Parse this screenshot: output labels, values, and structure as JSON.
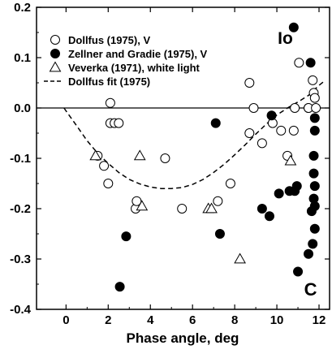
{
  "chart_data": {
    "type": "scatter",
    "title": "",
    "xlabel": "Phase angle, deg",
    "ylabel": "",
    "xlim": [
      -1.4,
      12.5
    ],
    "ylim": [
      -0.4,
      0.2
    ],
    "xticks": [
      0,
      2,
      4,
      6,
      8,
      10,
      12
    ],
    "yticks": [
      0.2,
      0.1,
      0.0,
      -0.1,
      -0.2,
      -0.3,
      -0.4
    ],
    "xtick_labels": [
      "0",
      "2",
      "4",
      "6",
      "8",
      "10",
      "12"
    ],
    "ytick_labels": [
      "0.2",
      "0.1",
      "0.0",
      "-0.1",
      "-0.2",
      "-0.3",
      "-0.4"
    ],
    "grid": false,
    "legend_position": "top-left",
    "zero_line": 0.0,
    "annotations": [
      {
        "text": "Io",
        "x": 10.4,
        "y": 0.14
      },
      {
        "text": "C",
        "x": 11.6,
        "y": -0.36
      }
    ],
    "series": [
      {
        "name": "Dollfus (1975), V",
        "marker": "open-circle",
        "points": [
          [
            1.5,
            -0.095
          ],
          [
            1.8,
            -0.115
          ],
          [
            2.0,
            -0.15
          ],
          [
            2.1,
            0.01
          ],
          [
            2.1,
            -0.03
          ],
          [
            2.3,
            -0.03
          ],
          [
            2.5,
            -0.03
          ],
          [
            3.3,
            -0.2
          ],
          [
            3.35,
            -0.185
          ],
          [
            4.7,
            -0.1
          ],
          [
            5.5,
            -0.2
          ],
          [
            7.2,
            -0.185
          ],
          [
            7.8,
            -0.15
          ],
          [
            8.7,
            0.05
          ],
          [
            8.7,
            -0.05
          ],
          [
            8.9,
            0.0
          ],
          [
            9.3,
            -0.07
          ],
          [
            9.8,
            -0.03
          ],
          [
            10.2,
            -0.045
          ],
          [
            10.5,
            -0.095
          ],
          [
            10.85,
            0.0
          ],
          [
            11.05,
            0.09
          ],
          [
            11.5,
            0.0
          ],
          [
            11.5,
            0.0
          ],
          [
            11.7,
            0.055
          ],
          [
            11.75,
            0.03
          ],
          [
            11.8,
            0.02
          ],
          [
            11.85,
            0.0
          ],
          [
            10.8,
            -0.045
          ]
        ]
      },
      {
        "name": "Zellner and Gradie (1975), V",
        "marker": "filled-circle",
        "points": [
          [
            2.55,
            -0.355
          ],
          [
            2.85,
            -0.255
          ],
          [
            7.1,
            -0.03
          ],
          [
            7.3,
            -0.25
          ],
          [
            9.3,
            -0.2
          ],
          [
            9.65,
            -0.215
          ],
          [
            9.75,
            -0.015
          ],
          [
            10.1,
            -0.17
          ],
          [
            10.6,
            -0.165
          ],
          [
            10.8,
            0.16
          ],
          [
            10.85,
            -0.165
          ],
          [
            10.95,
            -0.155
          ],
          [
            11.0,
            -0.325
          ],
          [
            11.5,
            -0.29
          ],
          [
            11.6,
            0.09
          ],
          [
            11.65,
            -0.205
          ],
          [
            11.7,
            -0.27
          ],
          [
            11.75,
            -0.13
          ],
          [
            11.75,
            -0.18
          ],
          [
            11.75,
            -0.095
          ],
          [
            11.8,
            -0.045
          ],
          [
            11.8,
            -0.02
          ],
          [
            11.8,
            -0.155
          ],
          [
            11.8,
            -0.195
          ],
          [
            11.8,
            -0.24
          ]
        ]
      },
      {
        "name": "Veverka (1971), white light",
        "marker": "open-triangle",
        "points": [
          [
            1.4,
            -0.095
          ],
          [
            3.5,
            -0.095
          ],
          [
            3.6,
            -0.195
          ],
          [
            6.75,
            -0.2
          ],
          [
            6.9,
            -0.2
          ],
          [
            8.25,
            -0.3
          ],
          [
            10.65,
            -0.105
          ]
        ]
      },
      {
        "name": "Dollfus fit (1975)",
        "marker": "dashed-line",
        "points": [
          [
            -0.1,
            0.0
          ],
          [
            0.5,
            -0.035
          ],
          [
            1.0,
            -0.065
          ],
          [
            1.5,
            -0.09
          ],
          [
            2.0,
            -0.11
          ],
          [
            2.5,
            -0.128
          ],
          [
            3.0,
            -0.142
          ],
          [
            3.5,
            -0.151
          ],
          [
            4.0,
            -0.157
          ],
          [
            4.5,
            -0.16
          ],
          [
            5.0,
            -0.16
          ],
          [
            5.5,
            -0.158
          ],
          [
            6.0,
            -0.152
          ],
          [
            6.5,
            -0.142
          ],
          [
            7.0,
            -0.128
          ],
          [
            7.5,
            -0.112
          ],
          [
            8.0,
            -0.093
          ],
          [
            8.5,
            -0.073
          ],
          [
            9.0,
            -0.052
          ],
          [
            9.5,
            -0.032
          ],
          [
            10.0,
            -0.014
          ],
          [
            10.5,
            0.0
          ],
          [
            11.0,
            0.012
          ],
          [
            11.5,
            0.025
          ],
          [
            12.0,
            0.045
          ],
          [
            12.3,
            0.055
          ]
        ]
      }
    ]
  }
}
